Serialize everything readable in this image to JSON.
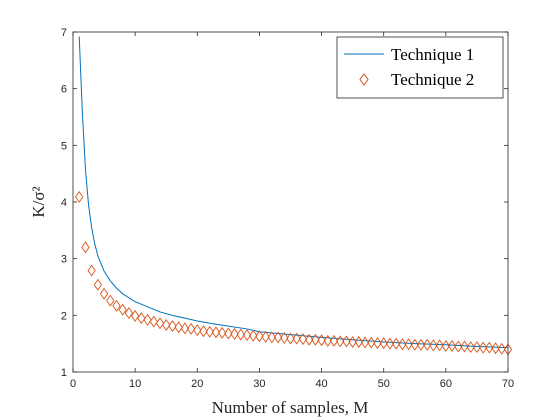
{
  "chart_data": {
    "type": "line",
    "xlabel": "Number of samples, M",
    "ylabel": "K/σ²",
    "xlim": [
      0,
      70
    ],
    "ylim": [
      1,
      7
    ],
    "xticks": [
      0,
      10,
      20,
      30,
      40,
      50,
      60,
      70
    ],
    "yticks": [
      1,
      2,
      3,
      4,
      5,
      6,
      7
    ],
    "grid": false,
    "legend_position": "top-right",
    "series": [
      {
        "name": "Technique 1",
        "style": "line",
        "color": "#0072BD",
        "x": [
          1,
          1.5,
          2,
          2.5,
          3,
          3.5,
          4,
          5,
          6,
          7,
          8,
          9,
          10,
          12,
          14,
          16,
          18,
          20,
          22,
          25,
          28,
          30,
          35,
          40,
          45,
          50,
          55,
          60,
          65,
          70
        ],
        "y": [
          6.92,
          5.59,
          4.58,
          3.95,
          3.55,
          3.26,
          3.05,
          2.78,
          2.61,
          2.48,
          2.38,
          2.31,
          2.24,
          2.15,
          2.06,
          2.0,
          1.95,
          1.9,
          1.86,
          1.81,
          1.76,
          1.71,
          1.66,
          1.61,
          1.57,
          1.53,
          1.5,
          1.48,
          1.45,
          1.43
        ]
      },
      {
        "name": "Technique 2",
        "style": "markers",
        "marker": "diamond",
        "color": "#D95319",
        "x": [
          1,
          2,
          3,
          4,
          5,
          6,
          7,
          8,
          9,
          10,
          11,
          12,
          13,
          14,
          15,
          16,
          17,
          18,
          19,
          20,
          21,
          22,
          23,
          24,
          25,
          26,
          27,
          28,
          29,
          30,
          31,
          32,
          33,
          34,
          35,
          36,
          37,
          38,
          39,
          40,
          41,
          42,
          43,
          44,
          45,
          46,
          47,
          48,
          49,
          50,
          51,
          52,
          53,
          54,
          55,
          56,
          57,
          58,
          59,
          60,
          61,
          62,
          63,
          64,
          65,
          66,
          67,
          68,
          69,
          70
        ],
        "y": [
          4.09,
          3.2,
          2.79,
          2.54,
          2.38,
          2.26,
          2.17,
          2.1,
          2.04,
          1.99,
          1.95,
          1.92,
          1.89,
          1.86,
          1.83,
          1.81,
          1.79,
          1.77,
          1.76,
          1.74,
          1.72,
          1.71,
          1.7,
          1.69,
          1.68,
          1.67,
          1.66,
          1.65,
          1.64,
          1.63,
          1.62,
          1.61,
          1.61,
          1.6,
          1.59,
          1.59,
          1.58,
          1.57,
          1.57,
          1.56,
          1.55,
          1.55,
          1.54,
          1.54,
          1.53,
          1.53,
          1.52,
          1.52,
          1.51,
          1.51,
          1.5,
          1.5,
          1.49,
          1.49,
          1.48,
          1.48,
          1.48,
          1.47,
          1.47,
          1.46,
          1.46,
          1.45,
          1.45,
          1.44,
          1.44,
          1.43,
          1.43,
          1.42,
          1.41,
          1.4
        ]
      }
    ]
  }
}
